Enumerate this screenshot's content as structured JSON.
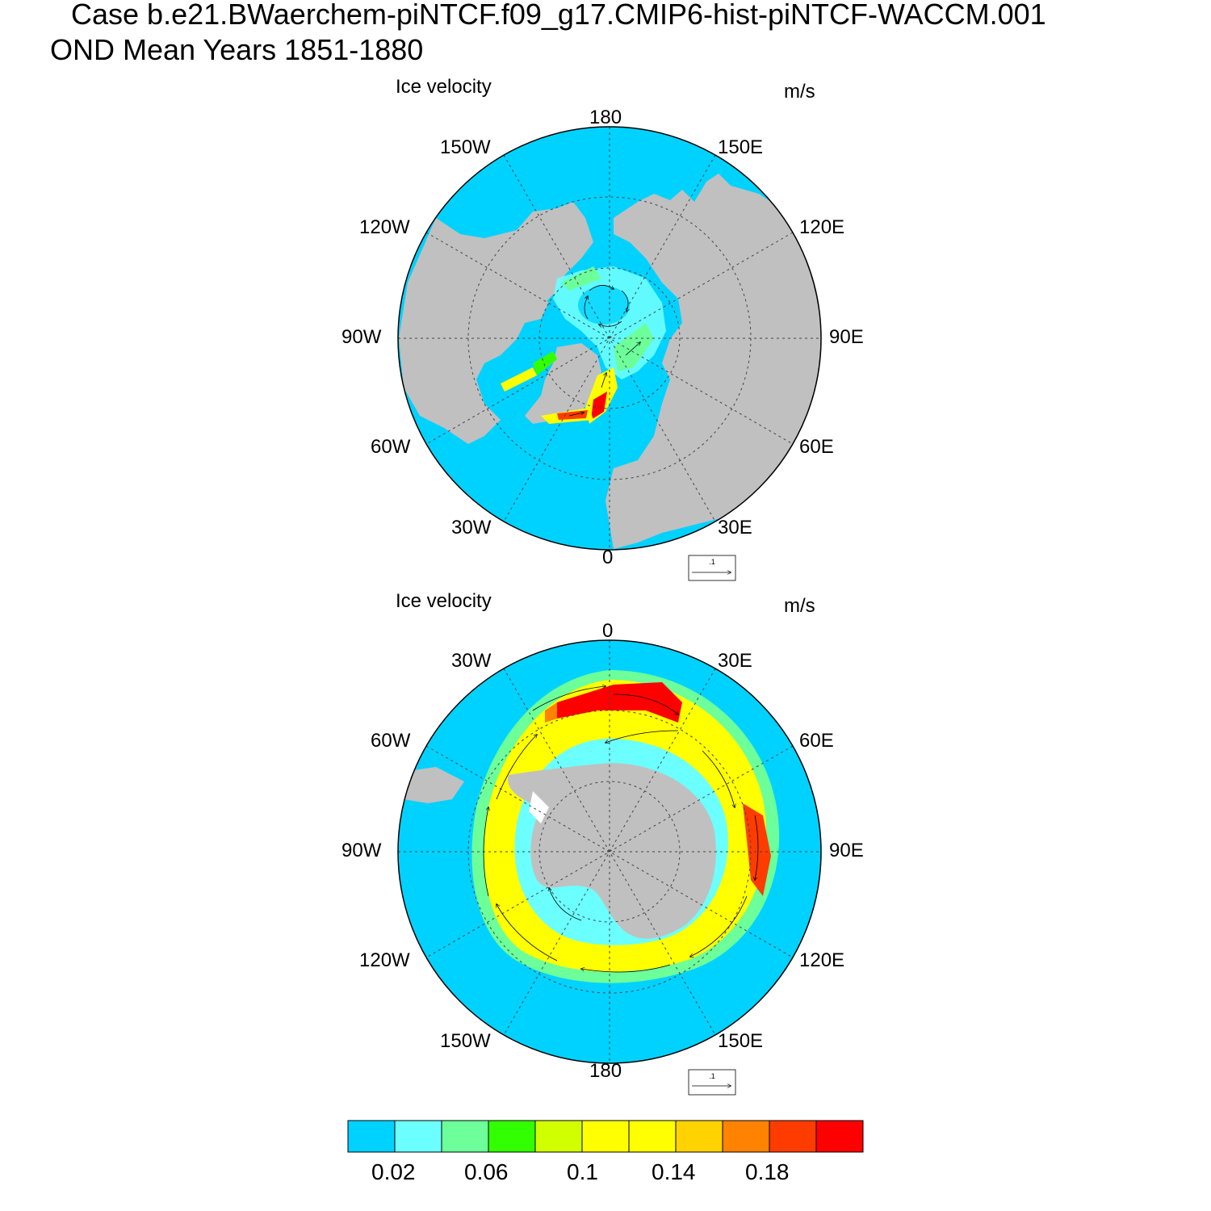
{
  "title": {
    "case_line": "Case b.e21.BWaerchem-piNTCF.f09_g17.CMIP6-hist-piNTCF-WACCM.001",
    "period_line": "OND Mean   Years 1851-1880"
  },
  "colors": {
    "ocean": "#00d2ff",
    "land": "#c0c0c0",
    "ice_edge": "#ffffff"
  },
  "panels": [
    {
      "id": "north",
      "hemisphere": "Northern Hemisphere",
      "left_label": "Ice velocity",
      "right_label": "m/s",
      "longitude_labels": [
        "180",
        "150E",
        "120E",
        "90E",
        "60E",
        "30E",
        "0",
        "30W",
        "60W",
        "90W",
        "120W",
        "150W"
      ],
      "reference_vector": ".1"
    },
    {
      "id": "south",
      "hemisphere": "Southern Hemisphere",
      "left_label": "Ice velocity",
      "right_label": "m/s",
      "longitude_labels": [
        "0",
        "30E",
        "60E",
        "90E",
        "120E",
        "150E",
        "180",
        "150W",
        "120W",
        "90W",
        "60W",
        "30W"
      ],
      "reference_vector": ".1"
    }
  ],
  "colorbar": {
    "levels": [
      0.02,
      0.04,
      0.06,
      0.08,
      0.1,
      0.12,
      0.14,
      0.16,
      0.18,
      0.2
    ],
    "colors": [
      "#00d2ff",
      "#6cffff",
      "#6cff9a",
      "#32ff00",
      "#d2ff00",
      "#ffff00",
      "#ffff00",
      "#ffd200",
      "#ff8200",
      "#ff3c00",
      "#ff0000"
    ],
    "labels": [
      "0.02",
      "0.06",
      "0.1",
      "0.14",
      "0.18"
    ]
  }
}
